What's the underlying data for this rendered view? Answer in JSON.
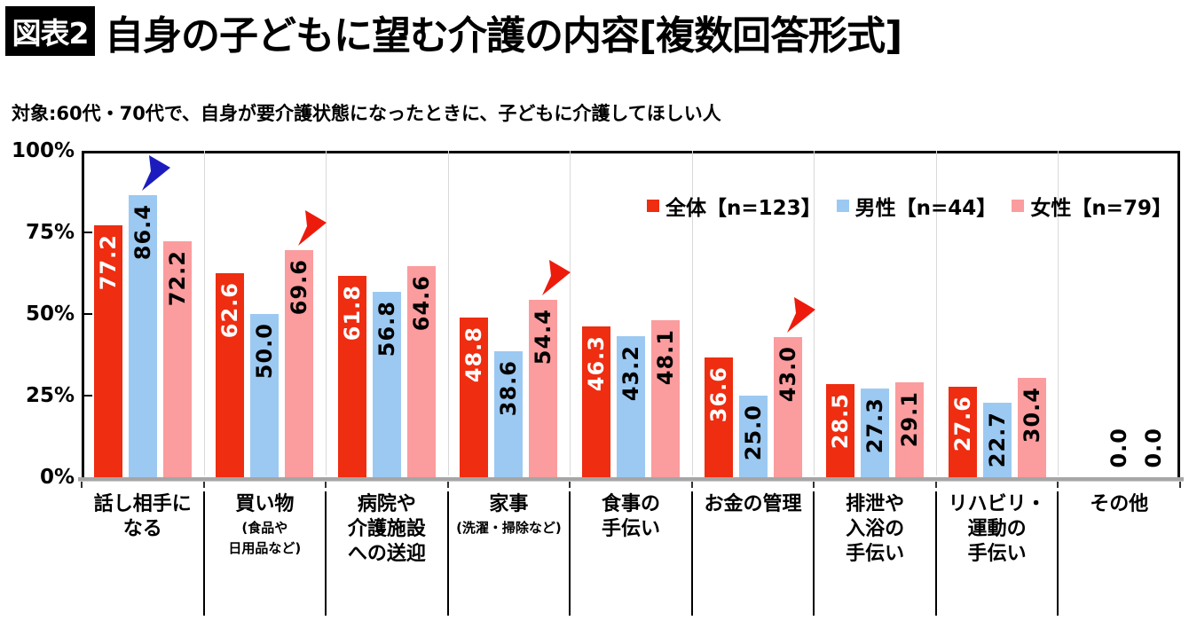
{
  "figure_tag": "図表2",
  "title": "自身の子どもに望む介護の内容[複数回答形式]",
  "subtitle": "対象:60代・70代で、自身が要介護状態になったときに、子どもに介護してほしい人",
  "colors": {
    "overall_bar": "#ee2d11",
    "male_bar": "#9cc9f2",
    "female_bar": "#fb9c9e",
    "arrow_blue": "#1c1cbe",
    "arrow_red": "#ed1b0c",
    "gridline": "#d9d9d9",
    "baseline": "#a6a6a6"
  },
  "legend": [
    {
      "label": "全体【n=123】",
      "color": "#ee2d11"
    },
    {
      "label": "男性【n=44】",
      "color": "#9cc9f2"
    },
    {
      "label": "女性【n=79】",
      "color": "#fb9c9e"
    }
  ],
  "chart_data": {
    "type": "bar",
    "title": "自身の子どもに望む介護の内容[複数回答形式]",
    "subtitle": "対象:60代・70代で、自身が要介護状態になったときに、子どもに介護してほしい人",
    "ylabel": "%",
    "ylim": [
      0,
      100
    ],
    "yticks": [
      {
        "label": "100%",
        "value": 100
      },
      {
        "label": "75%",
        "value": 75
      },
      {
        "label": "50%",
        "value": 50
      },
      {
        "label": "25%",
        "value": 25
      },
      {
        "label": "0%",
        "value": 0
      }
    ],
    "grid": "vertical-category-separators",
    "legend_position": "top-right-inside",
    "categories": [
      {
        "lines": [
          "話し相手に",
          "なる"
        ],
        "note_lines": []
      },
      {
        "lines": [
          "買い物"
        ],
        "note_lines": [
          "(食品や",
          "日用品など)"
        ]
      },
      {
        "lines": [
          "病院や",
          "介護施設",
          "への送迎"
        ],
        "note_lines": []
      },
      {
        "lines": [
          "家事"
        ],
        "note_lines": [
          "(洗濯・掃除など)"
        ]
      },
      {
        "lines": [
          "食事の",
          "手伝い"
        ],
        "note_lines": []
      },
      {
        "lines": [
          "お金の管理"
        ],
        "note_lines": []
      },
      {
        "lines": [
          "排泄や",
          "入浴の",
          "手伝い"
        ],
        "note_lines": []
      },
      {
        "lines": [
          "リハビリ・",
          "運動の",
          "手伝い"
        ],
        "note_lines": []
      },
      {
        "lines": [
          "その他"
        ],
        "note_lines": []
      }
    ],
    "series": [
      {
        "name": "全体【n=123】",
        "color": "#ee2d11",
        "label_color": "#ffffff",
        "values": [
          77.2,
          62.6,
          61.8,
          48.8,
          46.3,
          36.6,
          28.5,
          27.6,
          0.0
        ]
      },
      {
        "name": "男性【n=44】",
        "color": "#9cc9f2",
        "label_color": "#000000",
        "values": [
          86.4,
          50.0,
          56.8,
          38.6,
          43.2,
          25.0,
          27.3,
          22.7,
          0.0
        ]
      },
      {
        "name": "女性【n=79】",
        "color": "#fb9c9e",
        "label_color": "#000000",
        "values": [
          72.2,
          69.6,
          64.6,
          54.4,
          48.1,
          43.0,
          29.1,
          30.4,
          0.0
        ]
      }
    ],
    "annotations": [
      {
        "category": 0,
        "series": 1,
        "shape": "arrowhead",
        "color": "#1c1cbe"
      },
      {
        "category": 1,
        "series": 2,
        "shape": "arrowhead",
        "color": "#ed1b0c"
      },
      {
        "category": 3,
        "series": 2,
        "shape": "arrowhead",
        "color": "#ed1b0c"
      },
      {
        "category": 5,
        "series": 2,
        "shape": "arrowhead",
        "color": "#ed1b0c"
      }
    ]
  }
}
